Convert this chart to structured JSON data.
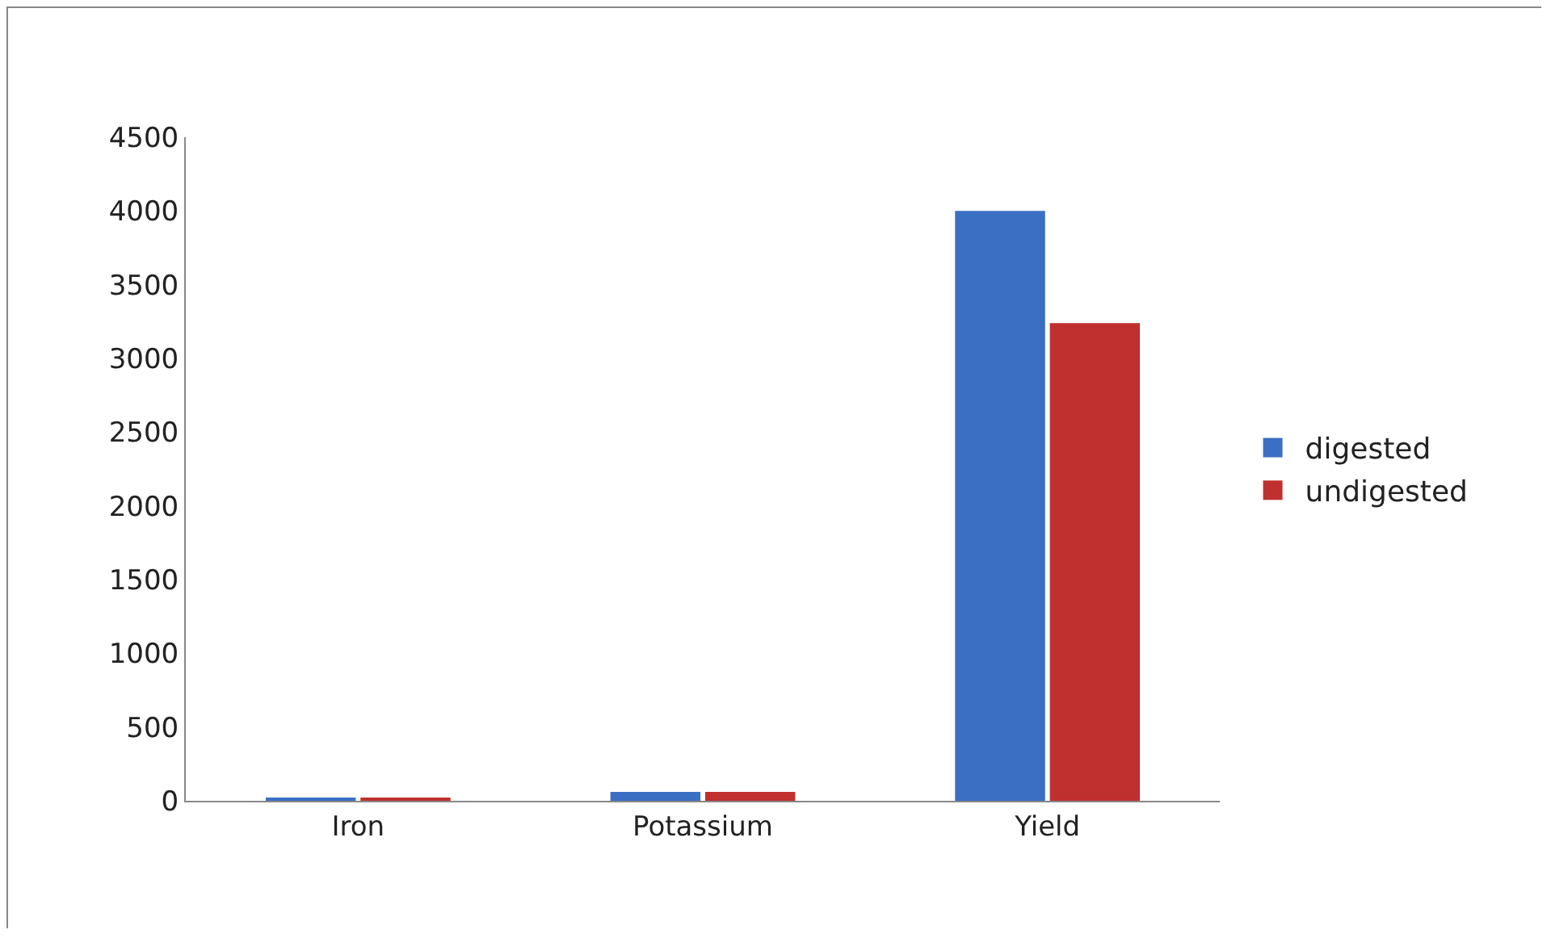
{
  "chart_data": {
    "type": "bar",
    "categories": [
      "Iron",
      "Potassium",
      "Yield"
    ],
    "series": [
      {
        "name": "digested",
        "color": "#3a6fc4",
        "values": [
          20,
          60,
          4000
        ]
      },
      {
        "name": "undigested",
        "color": "#c0302e",
        "values": [
          20,
          60,
          3240
        ]
      }
    ],
    "ylim": [
      0,
      4500
    ],
    "yticks": [
      0,
      500,
      1000,
      1500,
      2000,
      2500,
      3000,
      3500,
      4000,
      4500
    ],
    "grid": false,
    "legend": "right"
  }
}
